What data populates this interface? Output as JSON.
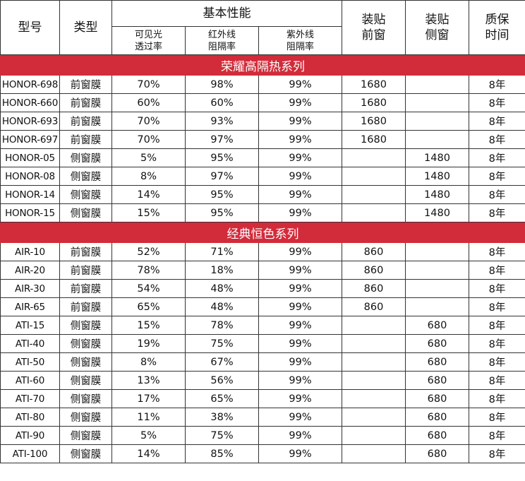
{
  "headers": {
    "model": "型号",
    "type": "类型",
    "performance": "基本性能",
    "visible": [
      "可见光",
      "透过率"
    ],
    "infrared": [
      "红外线",
      "阻隔率"
    ],
    "uv": [
      "紫外线",
      "阻隔率"
    ],
    "front": [
      "装贴",
      "前窗"
    ],
    "side": [
      "装贴",
      "侧窗"
    ],
    "warranty": [
      "质保",
      "时间"
    ]
  },
  "sections": [
    {
      "title": "荣耀高隔热系列",
      "rows": [
        {
          "model": "HONOR-698",
          "type": "前窗膜",
          "visible": "70%",
          "ir": "98%",
          "uv": "99%",
          "front": "1680",
          "side": "",
          "warranty": "8年"
        },
        {
          "model": "HONOR-660",
          "type": "前窗膜",
          "visible": "60%",
          "ir": "60%",
          "uv": "99%",
          "front": "1680",
          "side": "",
          "warranty": "8年"
        },
        {
          "model": "HONOR-693",
          "type": "前窗膜",
          "visible": "70%",
          "ir": "93%",
          "uv": "99%",
          "front": "1680",
          "side": "",
          "warranty": "8年"
        },
        {
          "model": "HONOR-697",
          "type": "前窗膜",
          "visible": "70%",
          "ir": "97%",
          "uv": "99%",
          "front": "1680",
          "side": "",
          "warranty": "8年"
        },
        {
          "model": "HONOR-05",
          "type": "侧窗膜",
          "visible": "5%",
          "ir": "95%",
          "uv": "99%",
          "front": "",
          "side": "1480",
          "warranty": "8年"
        },
        {
          "model": "HONOR-08",
          "type": "侧窗膜",
          "visible": "8%",
          "ir": "97%",
          "uv": "99%",
          "front": "",
          "side": "1480",
          "warranty": "8年"
        },
        {
          "model": "HONOR-14",
          "type": "侧窗膜",
          "visible": "14%",
          "ir": "95%",
          "uv": "99%",
          "front": "",
          "side": "1480",
          "warranty": "8年"
        },
        {
          "model": "HONOR-15",
          "type": "侧窗膜",
          "visible": "15%",
          "ir": "95%",
          "uv": "99%",
          "front": "",
          "side": "1480",
          "warranty": "8年"
        }
      ]
    },
    {
      "title": "经典恒色系列",
      "rows": [
        {
          "model": "AIR-10",
          "type": "前窗膜",
          "visible": "52%",
          "ir": "71%",
          "uv": "99%",
          "front": "860",
          "side": "",
          "warranty": "8年"
        },
        {
          "model": "AIR-20",
          "type": "前窗膜",
          "visible": "78%",
          "ir": "18%",
          "uv": "99%",
          "front": "860",
          "side": "",
          "warranty": "8年"
        },
        {
          "model": "AIR-30",
          "type": "前窗膜",
          "visible": "54%",
          "ir": "48%",
          "uv": "99%",
          "front": "860",
          "side": "",
          "warranty": "8年"
        },
        {
          "model": "AIR-65",
          "type": "前窗膜",
          "visible": "65%",
          "ir": "48%",
          "uv": "99%",
          "front": "860",
          "side": "",
          "warranty": "8年"
        },
        {
          "model": "ATI-15",
          "type": "侧窗膜",
          "visible": "15%",
          "ir": "78%",
          "uv": "99%",
          "front": "",
          "side": "680",
          "warranty": "8年"
        },
        {
          "model": "ATI-40",
          "type": "侧窗膜",
          "visible": "19%",
          "ir": "75%",
          "uv": "99%",
          "front": "",
          "side": "680",
          "warranty": "8年"
        },
        {
          "model": "ATI-50",
          "type": "侧窗膜",
          "visible": "8%",
          "ir": "67%",
          "uv": "99%",
          "front": "",
          "side": "680",
          "warranty": "8年"
        },
        {
          "model": "ATI-60",
          "type": "侧窗膜",
          "visible": "13%",
          "ir": "56%",
          "uv": "99%",
          "front": "",
          "side": "680",
          "warranty": "8年"
        },
        {
          "model": "ATI-70",
          "type": "侧窗膜",
          "visible": "17%",
          "ir": "65%",
          "uv": "99%",
          "front": "",
          "side": "680",
          "warranty": "8年"
        },
        {
          "model": "ATI-80",
          "type": "侧窗膜",
          "visible": "11%",
          "ir": "38%",
          "uv": "99%",
          "front": "",
          "side": "680",
          "warranty": "8年"
        },
        {
          "model": "ATI-90",
          "type": "侧窗膜",
          "visible": "5%",
          "ir": "75%",
          "uv": "99%",
          "front": "",
          "side": "680",
          "warranty": "8年"
        },
        {
          "model": "ATI-100",
          "type": "侧窗膜",
          "visible": "14%",
          "ir": "85%",
          "uv": "99%",
          "front": "",
          "side": "680",
          "warranty": "8年"
        }
      ]
    }
  ],
  "colors": {
    "section_band": "#d22b3a",
    "section_text": "#ffffff",
    "border": "#333333"
  }
}
